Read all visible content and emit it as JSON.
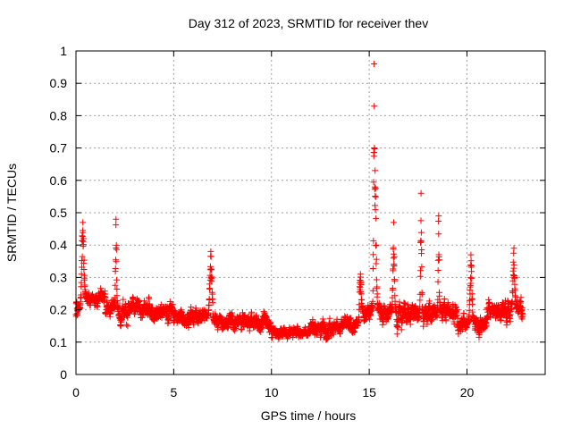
{
  "chart_data": {
    "type": "scatter",
    "title": "Day 312 of 2023, SRMTID for receiver thev",
    "xlabel": "GPS time / hours",
    "ylabel": "SRMTID / TECUs",
    "xlim": [
      0,
      24
    ],
    "ylim": [
      0,
      1
    ],
    "grid": true,
    "marker": "+",
    "marker_color": "#ff0000",
    "x_ticks": [
      0,
      5,
      10,
      15,
      20
    ],
    "x_tick_labels": [
      "0",
      "5",
      "10",
      "15",
      "20"
    ],
    "y_ticks": [
      0,
      0.1,
      0.2,
      0.3,
      0.4,
      0.5,
      0.6,
      0.7,
      0.8,
      0.9,
      1
    ],
    "y_tick_labels": [
      "0",
      "0.1",
      "0.2",
      "0.3",
      "0.4",
      "0.5",
      "0.6",
      "0.7",
      "0.8",
      "0.9",
      "1"
    ],
    "x_range_data": [
      0.0,
      22.85
    ],
    "sample_interval_hours": 0.0083,
    "baseline_segments": [
      {
        "x": [
          0.0,
          0.3
        ],
        "y_mean": 0.2,
        "y_spread": 0.1
      },
      {
        "x": [
          0.3,
          1.5
        ],
        "y_mean": 0.24,
        "y_spread": 0.06
      },
      {
        "x": [
          1.5,
          3.0
        ],
        "y_mean": 0.2,
        "y_spread": 0.08
      },
      {
        "x": [
          3.0,
          5.0
        ],
        "y_mean": 0.2,
        "y_spread": 0.07
      },
      {
        "x": [
          5.0,
          7.0
        ],
        "y_mean": 0.18,
        "y_spread": 0.06
      },
      {
        "x": [
          7.0,
          10.0
        ],
        "y_mean": 0.16,
        "y_spread": 0.06
      },
      {
        "x": [
          10.0,
          12.0
        ],
        "y_mean": 0.13,
        "y_spread": 0.04
      },
      {
        "x": [
          12.0,
          14.5
        ],
        "y_mean": 0.15,
        "y_spread": 0.06
      },
      {
        "x": [
          14.5,
          17.0
        ],
        "y_mean": 0.19,
        "y_spread": 0.08
      },
      {
        "x": [
          17.0,
          19.5
        ],
        "y_mean": 0.19,
        "y_spread": 0.08
      },
      {
        "x": [
          19.5,
          21.0
        ],
        "y_mean": 0.16,
        "y_spread": 0.07
      },
      {
        "x": [
          21.0,
          22.85
        ],
        "y_mean": 0.2,
        "y_spread": 0.08
      }
    ],
    "events": [
      {
        "x": 0.35,
        "peak": 0.47,
        "width": 0.12
      },
      {
        "x": 2.05,
        "peak": 0.48,
        "width": 0.06
      },
      {
        "x": 6.9,
        "peak": 0.38,
        "width": 0.12
      },
      {
        "x": 14.55,
        "peak": 0.31,
        "width": 0.1
      },
      {
        "x": 15.25,
        "peak": 0.96,
        "width": 0.06
      },
      {
        "x": 15.3,
        "peak": 0.63,
        "width": 0.12
      },
      {
        "x": 16.25,
        "peak": 0.47,
        "width": 0.08
      },
      {
        "x": 17.65,
        "peak": 0.56,
        "width": 0.06
      },
      {
        "x": 18.55,
        "peak": 0.49,
        "width": 0.05
      },
      {
        "x": 20.2,
        "peak": 0.37,
        "width": 0.1
      },
      {
        "x": 22.4,
        "peak": 0.39,
        "width": 0.1
      }
    ]
  }
}
